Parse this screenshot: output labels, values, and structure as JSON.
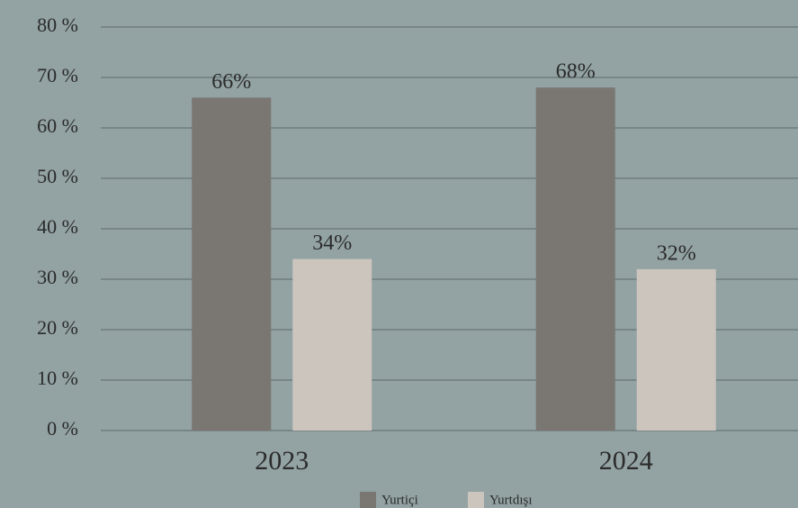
{
  "chart_data": {
    "type": "bar",
    "categories": [
      "2023",
      "2024"
    ],
    "series": [
      {
        "name": "Yurtiçi",
        "color": "#7a7672",
        "values": [
          66,
          68
        ],
        "value_labels": [
          "66%",
          "68%"
        ]
      },
      {
        "name": "Yurtdışı",
        "color": "#cbc5be",
        "values": [
          34,
          32
        ],
        "value_labels": [
          "34%",
          "32%"
        ]
      }
    ],
    "ylim": [
      0,
      80
    ],
    "yticks": [
      {
        "value": 0,
        "label": "0 %"
      },
      {
        "value": 10,
        "label": "10 %"
      },
      {
        "value": 20,
        "label": "20 %"
      },
      {
        "value": 30,
        "label": "30 %"
      },
      {
        "value": 40,
        "label": "40 %"
      },
      {
        "value": 50,
        "label": "50 %"
      },
      {
        "value": 60,
        "label": "60 %"
      },
      {
        "value": 70,
        "label": "70 %"
      },
      {
        "value": 80,
        "label": "80 %"
      }
    ],
    "grid": true,
    "legend": "bottom"
  }
}
